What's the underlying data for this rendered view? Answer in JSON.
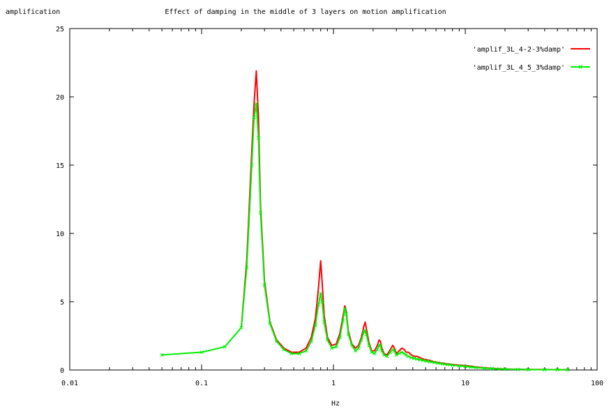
{
  "chart_data": {
    "type": "line",
    "title": "Effect of damping in the middle of 3 layers on motion amplification",
    "xlabel": "Hz",
    "ylabel": "amplification",
    "xscale": "log",
    "xlim": [
      0.01,
      100
    ],
    "ylim": [
      0,
      25
    ],
    "x_ticks": [
      0.01,
      0.1,
      1,
      10,
      100
    ],
    "x_tick_labels": [
      "0.01",
      "0.1",
      "1",
      "10",
      "100"
    ],
    "y_ticks": [
      0,
      5,
      10,
      15,
      20,
      25
    ],
    "y_tick_labels": [
      "0",
      "5",
      "10",
      "15",
      "20",
      "25"
    ],
    "grid": false,
    "legend_position": "top-right",
    "series": [
      {
        "name": "'amplif_3L_4-2-3%damp'",
        "color": "#ff0000",
        "marker": "none",
        "x": [
          0.2,
          0.22,
          0.24,
          0.25,
          0.26,
          0.27,
          0.28,
          0.3,
          0.33,
          0.37,
          0.42,
          0.48,
          0.55,
          0.62,
          0.68,
          0.73,
          0.77,
          0.8,
          0.82,
          0.85,
          0.9,
          0.97,
          1.05,
          1.12,
          1.18,
          1.22,
          1.25,
          1.3,
          1.38,
          1.47,
          1.55,
          1.63,
          1.7,
          1.74,
          1.78,
          1.86,
          1.95,
          2.05,
          2.15,
          2.22,
          2.27,
          2.33,
          2.42,
          2.55,
          2.7,
          2.82,
          2.9,
          3.0,
          3.15,
          3.3,
          3.45,
          3.55,
          3.7,
          3.9,
          4.1,
          4.3,
          4.55,
          4.8,
          5.1,
          5.4,
          5.8,
          6.2,
          6.7,
          7.3,
          8.0,
          9.0,
          10,
          11,
          12,
          14,
          16,
          18,
          20,
          25,
          30,
          40,
          50,
          60
        ],
        "y": [
          3.1,
          8.0,
          16.0,
          19.5,
          21.9,
          18.5,
          12.0,
          6.5,
          3.5,
          2.2,
          1.6,
          1.3,
          1.3,
          1.6,
          2.4,
          3.8,
          6.0,
          8.0,
          6.5,
          4.0,
          2.4,
          1.8,
          1.9,
          2.7,
          3.9,
          4.7,
          4.3,
          2.8,
          1.9,
          1.6,
          1.8,
          2.4,
          3.2,
          3.5,
          3.0,
          2.0,
          1.4,
          1.4,
          1.8,
          2.2,
          2.1,
          1.6,
          1.2,
          1.1,
          1.5,
          1.8,
          1.6,
          1.2,
          1.4,
          1.6,
          1.5,
          1.3,
          1.3,
          1.1,
          1.0,
          1.0,
          0.9,
          0.8,
          0.75,
          0.7,
          0.6,
          0.55,
          0.5,
          0.45,
          0.4,
          0.35,
          0.32,
          0.28,
          0.22,
          0.16,
          0.12,
          0.09,
          0.07,
          0.05,
          0.04,
          0.03,
          0.02,
          0.02
        ]
      },
      {
        "name": "'amplif_3L_4_5_3%damp'",
        "color": "#00ee00",
        "marker": "cross",
        "x": [
          0.05,
          0.1,
          0.15,
          0.2,
          0.22,
          0.24,
          0.25,
          0.26,
          0.27,
          0.28,
          0.3,
          0.33,
          0.37,
          0.42,
          0.48,
          0.55,
          0.62,
          0.68,
          0.73,
          0.77,
          0.8,
          0.82,
          0.85,
          0.9,
          0.97,
          1.05,
          1.12,
          1.18,
          1.22,
          1.25,
          1.3,
          1.38,
          1.47,
          1.55,
          1.63,
          1.7,
          1.74,
          1.78,
          1.86,
          1.95,
          2.05,
          2.15,
          2.22,
          2.27,
          2.33,
          2.42,
          2.55,
          2.7,
          2.82,
          2.9,
          3.0,
          3.15,
          3.3,
          3.45,
          3.55,
          3.7,
          3.9,
          4.1,
          4.3,
          4.55,
          4.8,
          5.1,
          5.4,
          5.8,
          6.2,
          6.7,
          7.3,
          8.0,
          9.0,
          10,
          11,
          12,
          14,
          16,
          18,
          20,
          25,
          30,
          40,
          50,
          60
        ],
        "y": [
          1.1,
          1.3,
          1.7,
          3.1,
          7.5,
          15.0,
          18.5,
          19.5,
          17.0,
          11.5,
          6.2,
          3.4,
          2.1,
          1.5,
          1.2,
          1.2,
          1.4,
          2.1,
          3.3,
          4.8,
          5.6,
          5.0,
          3.5,
          2.2,
          1.6,
          1.7,
          2.4,
          3.6,
          4.5,
          4.1,
          2.6,
          1.8,
          1.4,
          1.6,
          2.2,
          2.8,
          2.9,
          2.6,
          1.8,
          1.3,
          1.2,
          1.5,
          1.8,
          1.8,
          1.4,
          1.1,
          1.0,
          1.3,
          1.5,
          1.4,
          1.1,
          1.2,
          1.3,
          1.2,
          1.1,
          1.0,
          0.9,
          0.85,
          0.8,
          0.75,
          0.7,
          0.65,
          0.6,
          0.55,
          0.5,
          0.45,
          0.4,
          0.35,
          0.3,
          0.26,
          0.22,
          0.18,
          0.13,
          0.1,
          0.07,
          0.06,
          0.04,
          0.03,
          0.02,
          0.02,
          0.01
        ]
      }
    ]
  }
}
